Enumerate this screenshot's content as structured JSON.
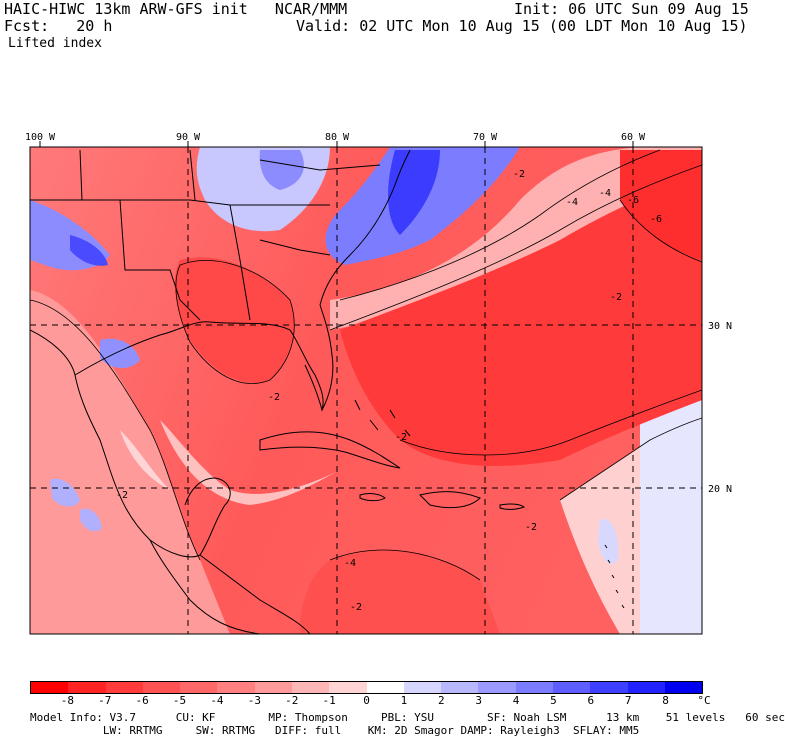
{
  "header": {
    "model_line": "HAIC-HIWC 13km ARW-GFS init   NCAR/MMM",
    "fcst_line": "Fcst:   20 h",
    "init_line": "Init: 06 UTC Sun 09 Aug 15",
    "valid_line": "Valid: 02 UTC Mon 10 Aug 15 (00 LDT Mon 10 Aug 15)",
    "field_name": "Lifted index"
  },
  "map": {
    "lon_labels": [
      "100 W",
      "90 W",
      "80 W",
      "70 W",
      "60 W"
    ],
    "lat_labels": [
      "30 N",
      "20 N"
    ],
    "contour_labels": [
      "-2",
      "-4",
      "-6",
      "-6",
      "-4",
      "-2",
      "-2",
      "-2",
      "-2",
      "-2",
      "-2",
      "-4"
    ]
  },
  "colorbar": {
    "ticks": [
      "-8",
      "-7",
      "-6",
      "-5",
      "-4",
      "-3",
      "-2",
      "-1",
      "0",
      "1",
      "2",
      "3",
      "4",
      "5",
      "6",
      "7",
      "8"
    ],
    "unit": "°C",
    "colors": [
      "#ff0000",
      "#ff2323",
      "#ff3b3b",
      "#ff5252",
      "#ff6868",
      "#ff8080",
      "#ff9a9a",
      "#ffb6b6",
      "#ffd4d4",
      "#ffffff",
      "#d6d6ff",
      "#b8b8ff",
      "#9a9aff",
      "#7c7cff",
      "#5e5eff",
      "#3f3fff",
      "#2222ff",
      "#0000f0"
    ]
  },
  "footer": {
    "line1": "Model Info: V3.7      CU: KF        MP: Thompson     PBL: YSU        SF: Noah LSM      13 km    51 levels   60 sec",
    "line2": "           LW: RRTMG     SW: RRTMG   DIFF: full    KM: 2D Smagor DAMP: Rayleigh3  SFLAY: MM5"
  },
  "colors": {
    "negative_strong": "#ff3030",
    "negative_mid": "#ff7070",
    "negative_light": "#ffb0b0",
    "neutral": "#ffffff",
    "positive_light": "#c8c8ff",
    "positive_strong": "#3c3cff"
  }
}
